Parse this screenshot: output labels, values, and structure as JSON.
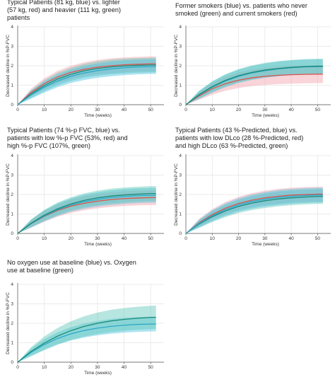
{
  "colors": {
    "blue": "#2aa8c8",
    "blue_band": "#4cc3e0",
    "red": "#d9534f",
    "red_band": "#f2a0a8",
    "green": "#1a8a78",
    "green_band": "#5fc6b8",
    "grid": "#e4e4e4",
    "axis": "#555555"
  },
  "chart_data": [
    {
      "type": "line",
      "title_lines": [
        "Typical Patients (81 kg, blue) vs. lighter",
        "(57 kg, red) and heavier (111 kg, green)",
        "patients"
      ],
      "xlabel": "Time (weeks)",
      "ylabel": "Decreased decline in %P-FVC",
      "xlim": [
        0,
        55
      ],
      "ylim": [
        0,
        4
      ],
      "xticks": [
        "0",
        "10",
        "20",
        "30",
        "40",
        "50"
      ],
      "yticks": [
        "0",
        "1",
        "2",
        "3",
        "4"
      ],
      "series": [
        {
          "color": "red",
          "x": [
            0,
            5,
            10,
            15,
            20,
            25,
            30,
            35,
            40,
            45,
            50,
            52
          ],
          "y": [
            0,
            0.62,
            1.08,
            1.42,
            1.66,
            1.82,
            1.93,
            2.0,
            2.05,
            2.08,
            2.1,
            2.1
          ],
          "band": [
            0,
            0.2,
            0.28,
            0.32,
            0.34,
            0.36,
            0.37,
            0.38,
            0.38,
            0.38,
            0.38,
            0.38
          ]
        },
        {
          "color": "green",
          "x": [
            0,
            5,
            10,
            15,
            20,
            25,
            30,
            35,
            40,
            45,
            50,
            52
          ],
          "y": [
            0,
            0.55,
            0.98,
            1.32,
            1.56,
            1.74,
            1.86,
            1.94,
            1.99,
            2.02,
            2.04,
            2.04
          ],
          "band": [
            0,
            0.2,
            0.28,
            0.32,
            0.34,
            0.36,
            0.37,
            0.38,
            0.38,
            0.38,
            0.38,
            0.38
          ]
        },
        {
          "color": "blue",
          "x": [
            0,
            5,
            10,
            15,
            20,
            25,
            30,
            35,
            40,
            45,
            50,
            52
          ],
          "y": [
            0,
            0.5,
            0.9,
            1.22,
            1.46,
            1.63,
            1.75,
            1.84,
            1.9,
            1.94,
            1.96,
            1.96
          ],
          "band": [
            0,
            0.2,
            0.28,
            0.32,
            0.34,
            0.36,
            0.37,
            0.38,
            0.38,
            0.38,
            0.38,
            0.38
          ]
        }
      ]
    },
    {
      "type": "line",
      "title_lines": [
        "Former smokers (blue) vs. patients who never",
        "smoked (green) and current smokers (red)"
      ],
      "xlabel": "Time (weeks)",
      "ylabel": "Decreased decline in %P-FVC",
      "xlim": [
        0,
        55
      ],
      "ylim": [
        0,
        4
      ],
      "xticks": [
        "0",
        "10",
        "20",
        "30",
        "40",
        "50"
      ],
      "yticks": [
        "0",
        "1",
        "2",
        "3",
        "4"
      ],
      "series": [
        {
          "color": "red",
          "x": [
            0,
            5,
            10,
            15,
            20,
            25,
            30,
            35,
            40,
            45,
            50,
            52
          ],
          "y": [
            0,
            0.45,
            0.82,
            1.08,
            1.26,
            1.38,
            1.46,
            1.51,
            1.54,
            1.56,
            1.57,
            1.57
          ],
          "band": [
            0,
            0.2,
            0.3,
            0.36,
            0.4,
            0.42,
            0.44,
            0.45,
            0.46,
            0.46,
            0.46,
            0.46
          ]
        },
        {
          "color": "blue",
          "x": [
            0,
            5,
            10,
            15,
            20,
            25,
            30,
            35,
            40,
            45,
            50,
            52
          ],
          "y": [
            0,
            0.5,
            0.9,
            1.22,
            1.46,
            1.63,
            1.75,
            1.84,
            1.9,
            1.94,
            1.96,
            1.96
          ],
          "band": [
            0,
            0.2,
            0.28,
            0.32,
            0.34,
            0.36,
            0.37,
            0.38,
            0.38,
            0.38,
            0.38,
            0.38
          ]
        },
        {
          "color": "green",
          "x": [
            0,
            5,
            10,
            15,
            20,
            25,
            30,
            35,
            40,
            45,
            50,
            52
          ],
          "y": [
            0,
            0.52,
            0.93,
            1.25,
            1.49,
            1.66,
            1.78,
            1.86,
            1.92,
            1.96,
            1.98,
            1.98
          ],
          "band": [
            0,
            0.2,
            0.28,
            0.32,
            0.34,
            0.36,
            0.37,
            0.38,
            0.38,
            0.38,
            0.38,
            0.38
          ]
        }
      ]
    },
    {
      "type": "line",
      "title_lines": [
        "Typical Patients (74 %-p FVC, blue) vs.",
        "patients with low %-p FVC (53%, red) and",
        "high %-p FVC (107%, green)"
      ],
      "xlabel": "Time (weeks)",
      "ylabel": "Decreased decline in %P-FVC",
      "xlim": [
        0,
        55
      ],
      "ylim": [
        0,
        4
      ],
      "xticks": [
        "0",
        "10",
        "20",
        "30",
        "40",
        "50"
      ],
      "yticks": [
        "0",
        "1",
        "2",
        "3",
        "4"
      ],
      "series": [
        {
          "color": "red",
          "x": [
            0,
            5,
            10,
            15,
            20,
            25,
            30,
            35,
            40,
            45,
            50,
            52
          ],
          "y": [
            0,
            0.5,
            0.88,
            1.18,
            1.4,
            1.55,
            1.66,
            1.74,
            1.79,
            1.82,
            1.84,
            1.84
          ],
          "band": [
            0,
            0.2,
            0.28,
            0.32,
            0.34,
            0.36,
            0.37,
            0.38,
            0.38,
            0.38,
            0.38,
            0.38
          ]
        },
        {
          "color": "blue",
          "x": [
            0,
            5,
            10,
            15,
            20,
            25,
            30,
            35,
            40,
            45,
            50,
            52
          ],
          "y": [
            0,
            0.5,
            0.9,
            1.22,
            1.46,
            1.63,
            1.75,
            1.84,
            1.9,
            1.94,
            1.96,
            1.96
          ],
          "band": [
            0,
            0.2,
            0.28,
            0.32,
            0.34,
            0.36,
            0.37,
            0.38,
            0.38,
            0.38,
            0.38,
            0.38
          ]
        },
        {
          "color": "green",
          "x": [
            0,
            5,
            10,
            15,
            20,
            25,
            30,
            35,
            40,
            45,
            50,
            52
          ],
          "y": [
            0,
            0.52,
            0.94,
            1.27,
            1.52,
            1.7,
            1.83,
            1.92,
            1.98,
            2.02,
            2.05,
            2.05
          ],
          "band": [
            0,
            0.2,
            0.28,
            0.32,
            0.34,
            0.36,
            0.37,
            0.38,
            0.38,
            0.38,
            0.38,
            0.38
          ]
        }
      ]
    },
    {
      "type": "line",
      "title_lines": [
        "Typical Patients (43 %-Predicted, blue) vs.",
        "patients with low DLco (28 %-Predicted, red)",
        "and high DLco (63 %-Predicted, green)"
      ],
      "xlabel": "Time (weeks)",
      "ylabel": "Decreased decline in %P-FVC",
      "xlim": [
        0,
        55
      ],
      "ylim": [
        0,
        4
      ],
      "xticks": [
        "0",
        "10",
        "20",
        "30",
        "40",
        "50"
      ],
      "yticks": [
        "0",
        "1",
        "2",
        "3",
        "4"
      ],
      "series": [
        {
          "color": "red",
          "x": [
            0,
            5,
            10,
            15,
            20,
            25,
            30,
            35,
            40,
            45,
            50,
            52
          ],
          "y": [
            0,
            0.55,
            0.97,
            1.3,
            1.54,
            1.71,
            1.83,
            1.91,
            1.97,
            2.0,
            2.02,
            2.02
          ],
          "band": [
            0,
            0.2,
            0.28,
            0.32,
            0.34,
            0.36,
            0.37,
            0.38,
            0.38,
            0.38,
            0.38,
            0.38
          ]
        },
        {
          "color": "green",
          "x": [
            0,
            5,
            10,
            15,
            20,
            25,
            30,
            35,
            40,
            45,
            50,
            52
          ],
          "y": [
            0,
            0.48,
            0.86,
            1.16,
            1.39,
            1.56,
            1.68,
            1.77,
            1.83,
            1.87,
            1.9,
            1.9
          ],
          "band": [
            0,
            0.2,
            0.28,
            0.32,
            0.34,
            0.36,
            0.37,
            0.38,
            0.38,
            0.38,
            0.38,
            0.38
          ]
        },
        {
          "color": "blue",
          "x": [
            0,
            5,
            10,
            15,
            20,
            25,
            30,
            35,
            40,
            45,
            50,
            52
          ],
          "y": [
            0,
            0.51,
            0.91,
            1.23,
            1.47,
            1.64,
            1.76,
            1.85,
            1.91,
            1.95,
            1.97,
            1.97
          ],
          "band": [
            0,
            0.2,
            0.28,
            0.32,
            0.34,
            0.36,
            0.37,
            0.38,
            0.38,
            0.38,
            0.38,
            0.38
          ]
        }
      ]
    },
    {
      "type": "line",
      "title_lines": [
        "No oxygen use at baseline (blue) vs. Oxygen",
        "use at baseline (green)"
      ],
      "xlabel": "Time (weeks)",
      "ylabel": "Decreased decline in %P-FVC",
      "xlim": [
        0,
        55
      ],
      "ylim": [
        0,
        4
      ],
      "xticks": [
        "0",
        "10",
        "20",
        "30",
        "40",
        "50"
      ],
      "yticks": [
        "0",
        "1",
        "2",
        "3",
        "4"
      ],
      "series": [
        {
          "color": "blue",
          "x": [
            0,
            5,
            10,
            15,
            20,
            25,
            30,
            35,
            40,
            45,
            50,
            52
          ],
          "y": [
            0,
            0.5,
            0.9,
            1.22,
            1.46,
            1.63,
            1.75,
            1.84,
            1.9,
            1.94,
            1.96,
            1.96
          ],
          "band": [
            0,
            0.2,
            0.28,
            0.32,
            0.34,
            0.36,
            0.37,
            0.38,
            0.38,
            0.38,
            0.38,
            0.38
          ]
        },
        {
          "color": "green",
          "x": [
            0,
            5,
            10,
            15,
            20,
            25,
            30,
            35,
            40,
            45,
            50,
            52
          ],
          "y": [
            0,
            0.55,
            0.98,
            1.34,
            1.62,
            1.84,
            2.0,
            2.12,
            2.2,
            2.26,
            2.3,
            2.31
          ],
          "band": [
            0,
            0.22,
            0.34,
            0.42,
            0.48,
            0.52,
            0.55,
            0.57,
            0.58,
            0.59,
            0.6,
            0.6
          ]
        }
      ]
    }
  ]
}
